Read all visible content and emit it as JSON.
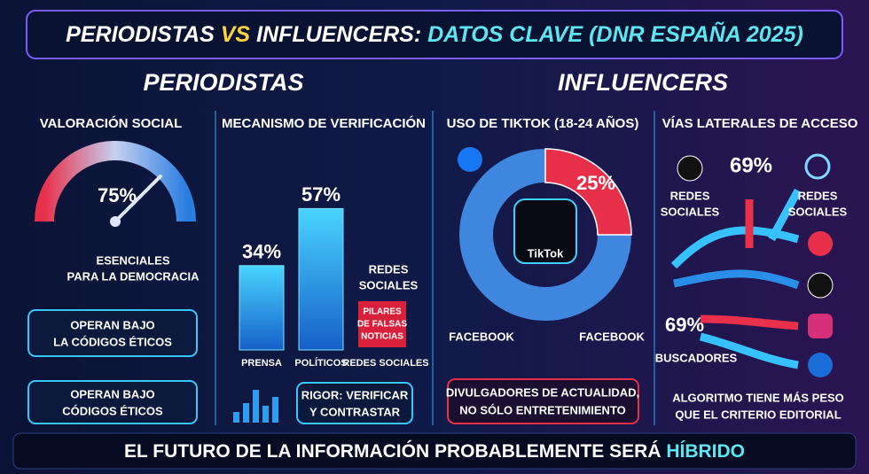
{
  "title": {
    "parts": [
      "PERIODISTAS",
      "VS",
      "INFLUENCERS:",
      "DATOS CLAVE (DNR ESPAÑA 2025)"
    ]
  },
  "sections": [
    "PERIODISTAS",
    "INFLUENCERS"
  ],
  "social": {
    "heading": "VALORACIÓN SOCIAL",
    "gauge": {
      "value": 75,
      "label": "75%"
    },
    "caption": [
      "ESENCIALES",
      "PARA LA DEMOCRACIA"
    ],
    "boxes": [
      [
        "OPERAN BAJO",
        "LA CÓDIGOS ÉTICOS"
      ],
      [
        "OPERAN BAJO",
        "CÓDIGOS ÉTICOS"
      ]
    ]
  },
  "verification": {
    "heading": "MECANISMO DE VERIFICACIÓN",
    "bars": [
      {
        "category": "PRENSA",
        "value": 34,
        "label": "34%"
      },
      {
        "category": "POLÍTICOS",
        "value": 57,
        "label": "57%"
      }
    ],
    "third_category": "REDES SOCIALES",
    "side_label": [
      "REDES",
      "SOCIALES"
    ],
    "warning": [
      "PILARES",
      "DE FALSAS",
      "NOTICIAS"
    ],
    "box": [
      "RIGOR: VERIFICAR",
      "Y CONTRASTAR"
    ]
  },
  "tiktok": {
    "heading": "USO DE TIKTOK (18-24 AÑOS)",
    "share": {
      "value": 25,
      "label": "25%"
    },
    "logo": "TikTok",
    "labels": [
      "FACEBOOK",
      "FACEBOOK"
    ],
    "box": [
      "DIVULGADORES DE ACTUALIDAD,",
      "NO SÓLO ENTRETENIMIENTO"
    ]
  },
  "access": {
    "heading": "VÍAS LATERALES DE ACCESO",
    "top": "69%",
    "left_label": [
      "REDES",
      "SOCIALES"
    ],
    "right_label": [
      "REDES",
      "SOCIALES"
    ],
    "search": "69%",
    "search_label": "BUSCADORES",
    "note": [
      "ALGORITMO TIENE MÁS PESO",
      "QUE EL CRITERIO EDITORIAL"
    ]
  },
  "footer": {
    "parts": [
      "EL FUTURO DE LA INFORMACIÓN PROBABLEMENTE SERÁ",
      "HÍBRIDO"
    ]
  }
}
